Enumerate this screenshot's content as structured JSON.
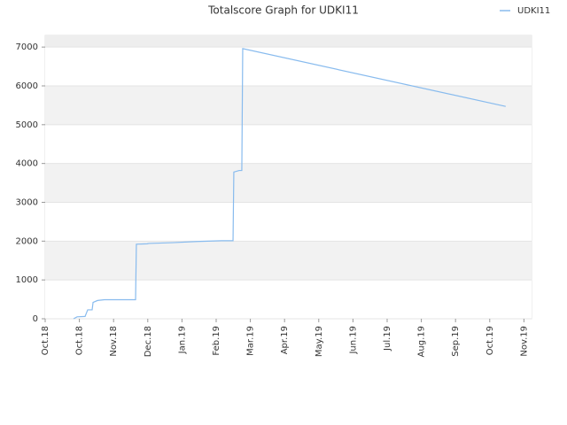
{
  "chart_data": {
    "type": "line",
    "title": "Totalscore Graph for UDKI11",
    "series": [
      {
        "name": "UDKI11",
        "color": "#88bbee",
        "x": [
          24.9,
          28,
          35,
          37.3,
          41.2,
          42,
          45.9,
          52,
          79.3,
          80,
          89.4,
          91,
          112,
          133,
          154.7,
          164.8,
          165.5,
          170.2,
          172.5,
          173.3,
          404
        ],
        "values": [
          0,
          50,
          60,
          230,
          230,
          420,
          470,
          490,
          490,
          1920,
          1930,
          1940,
          1960,
          1990,
          2010,
          2010,
          3780,
          3820,
          3820,
          6960,
          5470
        ]
      }
    ],
    "xlim": [
      0,
      426.7
    ],
    "xticks": [
      {
        "value": 0,
        "label": "Oct.18"
      },
      {
        "value": 30,
        "label": "Oct.18"
      },
      {
        "value": 60,
        "label": "Nov.18"
      },
      {
        "value": 90,
        "label": "Dec.18"
      },
      {
        "value": 120,
        "label": "Jan.19"
      },
      {
        "value": 150,
        "label": "Feb.19"
      },
      {
        "value": 180,
        "label": "Mar.19"
      },
      {
        "value": 210,
        "label": "Apr.19"
      },
      {
        "value": 240,
        "label": "May.19"
      },
      {
        "value": 270,
        "label": "Jun.19"
      },
      {
        "value": 300,
        "label": "Jul.19"
      },
      {
        "value": 330,
        "label": "Aug.19"
      },
      {
        "value": 360,
        "label": "Sep.19"
      },
      {
        "value": 390,
        "label": "Oct.19"
      },
      {
        "value": 420,
        "label": "Nov.19"
      }
    ],
    "ylim": [
      0,
      7300
    ],
    "yticks": [
      0,
      1000,
      2000,
      3000,
      4000,
      5000,
      6000,
      7000
    ],
    "grid": true,
    "legend": "top-right"
  }
}
